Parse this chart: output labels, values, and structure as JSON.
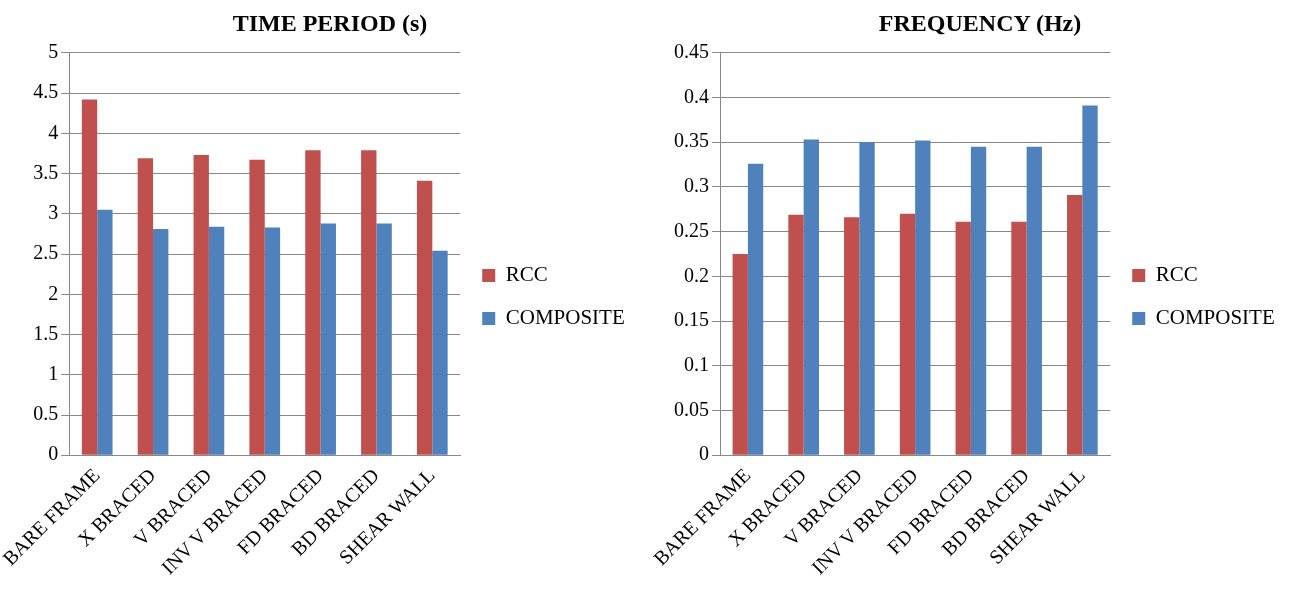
{
  "chart_data": [
    {
      "type": "bar",
      "title": "TIME PERIOD (s)",
      "categories": [
        "BARE FRAME",
        "X BRACED",
        "V BRACED",
        "INV V BRACED",
        "FD BRACED",
        "BD BRACED",
        "SHEAR WALL"
      ],
      "series": [
        {
          "name": "RCC",
          "color": "#c0504d",
          "values": [
            4.42,
            3.69,
            3.73,
            3.67,
            3.79,
            3.79,
            3.41
          ]
        },
        {
          "name": "COMPOSITE",
          "color": "#4f81bd",
          "values": [
            3.05,
            2.81,
            2.84,
            2.83,
            2.88,
            2.88,
            2.54
          ]
        }
      ],
      "ylim": [
        0,
        5
      ],
      "yticks": [
        0,
        0.5,
        1,
        1.5,
        2,
        2.5,
        3,
        3.5,
        4,
        4.5,
        5
      ],
      "grid": "y",
      "legend": "right"
    },
    {
      "type": "bar",
      "title": "FREQUENCY (Hz)",
      "categories": [
        "BARE FRAME",
        "X BRACED",
        "V BRACED",
        "INV V BRACED",
        "FD BRACED",
        "BD BRACED",
        "SHEAR WALL"
      ],
      "series": [
        {
          "name": "RCC",
          "color": "#c0504d",
          "values": [
            0.225,
            0.269,
            0.266,
            0.27,
            0.261,
            0.261,
            0.291
          ]
        },
        {
          "name": "COMPOSITE",
          "color": "#4f81bd",
          "values": [
            0.326,
            0.353,
            0.35,
            0.352,
            0.345,
            0.345,
            0.391
          ]
        }
      ],
      "ylim": [
        0,
        0.45
      ],
      "yticks": [
        0,
        0.05,
        0.1,
        0.15,
        0.2,
        0.25,
        0.3,
        0.35,
        0.4,
        0.45
      ],
      "grid": "y",
      "legend": "right"
    }
  ]
}
